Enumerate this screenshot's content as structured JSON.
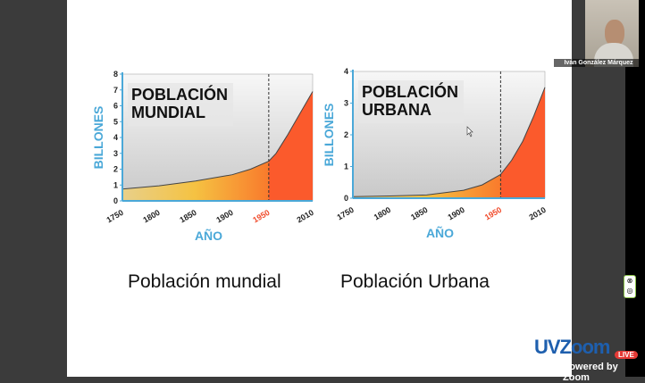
{
  "window": {
    "participant_name": "Iván González Márquez",
    "logo_text": "UVZoom",
    "live_badge": "LIVE",
    "powered_by": "Powered by Zoom",
    "side_tools": [
      "⊗",
      "◎"
    ]
  },
  "slide": {
    "captions": [
      "Población mundial",
      "Población Urbana"
    ],
    "colors": {
      "axis": "#4aa8d8",
      "fill_early": "#f5c242",
      "fill_late": "#fb5a2c",
      "highlight_year": "#f04a2a",
      "plot_bg": "#e2e2e2"
    }
  },
  "chart_data": [
    {
      "type": "area",
      "title_lines": [
        "POBLACIÓN",
        "MUNDIAL"
      ],
      "xlabel": "AÑO",
      "ylabel": "BILLONES",
      "xlim": [
        1750,
        2010
      ],
      "ylim": [
        0,
        8
      ],
      "xticks": [
        "1750",
        "1800",
        "1850",
        "1900",
        "1950",
        "2010"
      ],
      "highlight_tick": "1950",
      "yticks": [
        "0",
        "1",
        "2",
        "3",
        "4",
        "5",
        "6",
        "7",
        "8"
      ],
      "marker_year": 1950,
      "x": [
        1750,
        1800,
        1850,
        1900,
        1925,
        1950,
        1960,
        1975,
        1990,
        2010
      ],
      "y": [
        0.75,
        0.95,
        1.25,
        1.65,
        2.0,
        2.5,
        3.0,
        4.1,
        5.3,
        6.9
      ]
    },
    {
      "type": "area",
      "title_lines": [
        "POBLACIÓN",
        "URBANA"
      ],
      "xlabel": "AÑO",
      "ylabel": "BILLONES",
      "xlim": [
        1750,
        2010
      ],
      "ylim": [
        0,
        4
      ],
      "xticks": [
        "1750",
        "1800",
        "1850",
        "1900",
        "1950",
        "2010"
      ],
      "highlight_tick": "1950",
      "yticks": [
        "0",
        "1",
        "2",
        "3",
        "4"
      ],
      "marker_year": 1950,
      "x": [
        1750,
        1800,
        1850,
        1900,
        1925,
        1950,
        1965,
        1980,
        1995,
        2010
      ],
      "y": [
        0.05,
        0.07,
        0.1,
        0.25,
        0.42,
        0.75,
        1.2,
        1.8,
        2.6,
        3.5
      ]
    }
  ]
}
